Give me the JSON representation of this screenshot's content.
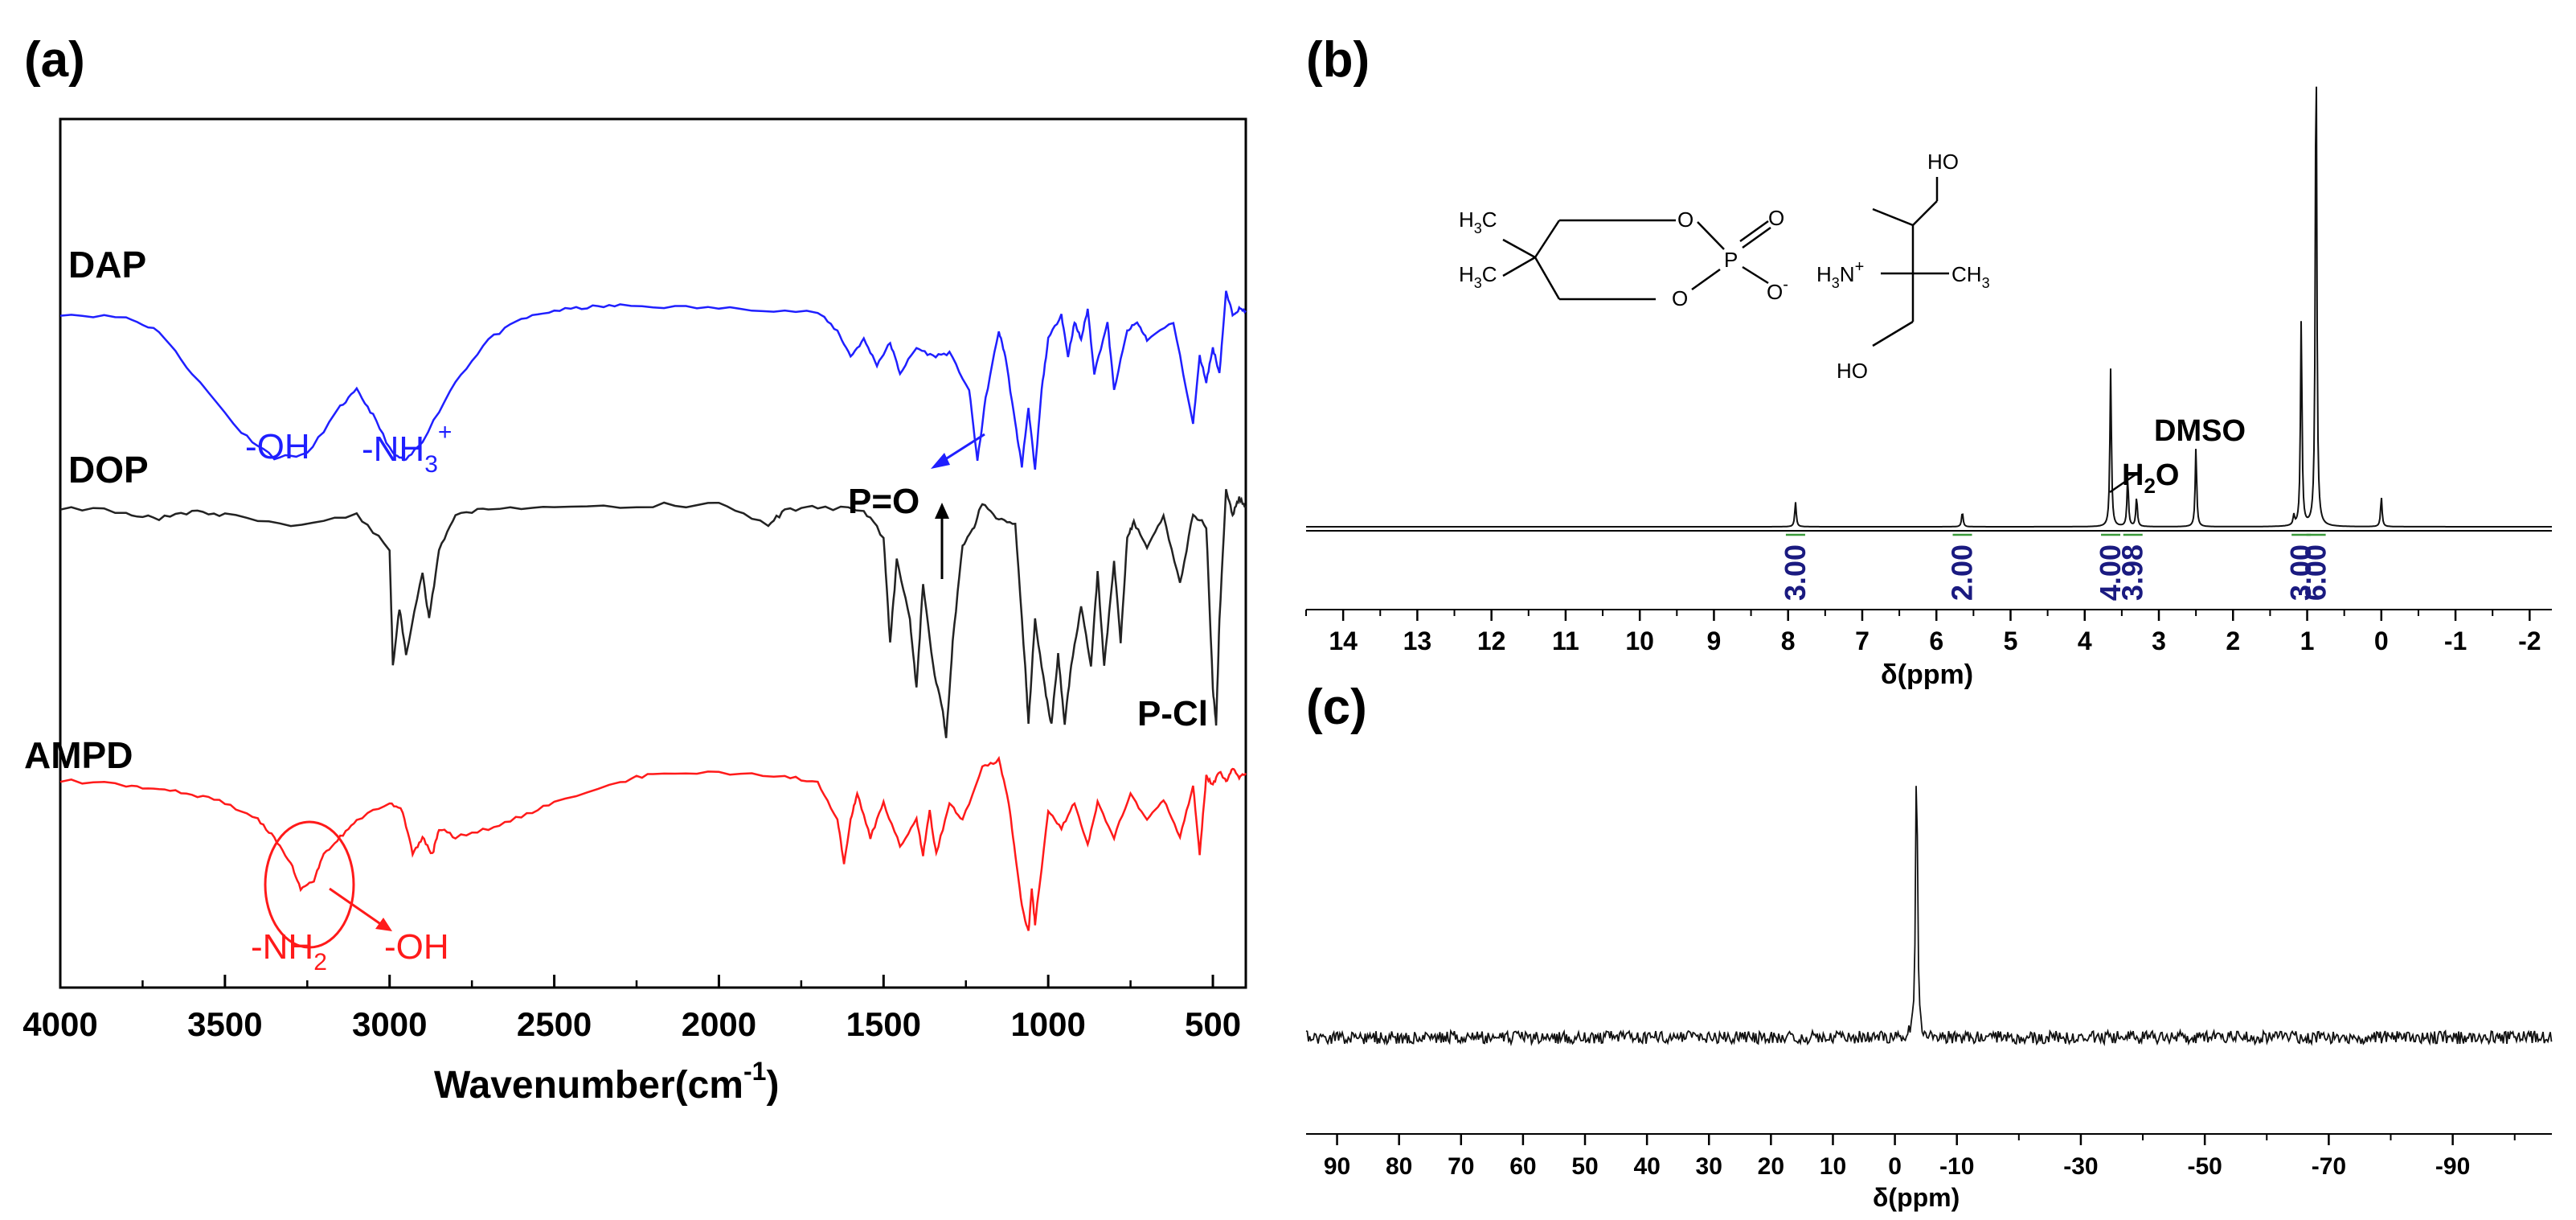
{
  "panels": [
    {
      "label": "(a)"
    },
    {
      "label": "(b)"
    },
    {
      "label": "(c)"
    }
  ],
  "colors": {
    "DAP": "#1f1fff",
    "DOP": "#222222",
    "AMPD": "#ff1a1a",
    "integral": "#1a1a80",
    "integral_bracket": "#3a9a3a"
  },
  "chart_data": [
    {
      "type": "line",
      "panel": "(a)",
      "xlabel_main": "Wavenumber(cm",
      "xlabel_sup": "-1",
      "xlabel_end": ")",
      "xlim": [
        4000,
        400
      ],
      "xticks": [
        "4000",
        "3500",
        "3000",
        "2500",
        "2000",
        "1500",
        "1000",
        "500"
      ],
      "xtick_values": [
        4000,
        3500,
        3000,
        2500,
        2000,
        1500,
        1000,
        500
      ],
      "series": [
        {
          "name": "DAP",
          "color": "#1f1fff",
          "offset": 0,
          "x": [
            4000,
            3800,
            3700,
            3600,
            3450,
            3350,
            3250,
            3150,
            3100,
            3050,
            2990,
            2950,
            2900,
            2800,
            2700,
            2600,
            2500,
            2400,
            2300,
            2100,
            1900,
            1700,
            1640,
            1600,
            1560,
            1520,
            1480,
            1450,
            1400,
            1350,
            1300,
            1240,
            1215,
            1190,
            1150,
            1130,
            1100,
            1080,
            1060,
            1040,
            1020,
            1000,
            960,
            940,
            920,
            900,
            880,
            860,
            820,
            800,
            760,
            730,
            700,
            620,
            560,
            540,
            520,
            500,
            480,
            460,
            440,
            420,
            400
          ],
          "y": [
            0.95,
            0.93,
            0.85,
            0.6,
            0.25,
            0.1,
            0.12,
            0.4,
            0.5,
            0.35,
            0.12,
            0.08,
            0.2,
            0.55,
            0.8,
            0.92,
            0.97,
            0.99,
            1.0,
            0.99,
            0.98,
            0.96,
            0.85,
            0.7,
            0.8,
            0.65,
            0.78,
            0.6,
            0.75,
            0.7,
            0.72,
            0.5,
            0.08,
            0.45,
            0.85,
            0.7,
            0.3,
            0.05,
            0.4,
            0.02,
            0.5,
            0.8,
            0.95,
            0.7,
            0.9,
            0.8,
            0.98,
            0.6,
            0.9,
            0.5,
            0.85,
            0.9,
            0.8,
            0.9,
            0.3,
            0.7,
            0.55,
            0.75,
            0.6,
            1.08,
            0.95,
            0.98,
            0.97
          ]
        },
        {
          "name": "DOP",
          "color": "#222222",
          "offset": 0,
          "x": [
            4000,
            3800,
            3700,
            3600,
            3500,
            3300,
            3100,
            3000,
            2990,
            2970,
            2950,
            2900,
            2880,
            2850,
            2800,
            2700,
            2500,
            2200,
            2000,
            1850,
            1800,
            1700,
            1560,
            1500,
            1480,
            1460,
            1420,
            1400,
            1380,
            1350,
            1320,
            1310,
            1290,
            1260,
            1230,
            1200,
            1150,
            1100,
            1070,
            1060,
            1040,
            1010,
            990,
            970,
            950,
            930,
            900,
            870,
            850,
            830,
            800,
            780,
            760,
            740,
            700,
            650,
            600,
            560,
            520,
            500,
            490,
            480,
            460,
            440,
            420,
            400
          ],
          "y": [
            0.98,
            0.96,
            0.93,
            0.96,
            0.95,
            0.9,
            0.95,
            0.8,
            0.3,
            0.55,
            0.35,
            0.7,
            0.5,
            0.8,
            0.95,
            0.97,
            0.98,
            0.99,
            0.99,
            0.9,
            0.97,
            0.98,
            0.97,
            0.85,
            0.4,
            0.75,
            0.5,
            0.2,
            0.65,
            0.3,
            0.1,
            0.0,
            0.4,
            0.82,
            0.88,
            1.0,
            0.93,
            0.9,
            0.3,
            0.05,
            0.5,
            0.2,
            0.05,
            0.35,
            0.05,
            0.3,
            0.55,
            0.3,
            0.7,
            0.3,
            0.75,
            0.4,
            0.85,
            0.92,
            0.8,
            0.95,
            0.65,
            0.95,
            0.9,
            0.2,
            0.05,
            0.5,
            1.05,
            0.95,
            1.02,
            0.98
          ]
        },
        {
          "name": "AMPD",
          "color": "#ff1a1a",
          "offset": 0,
          "x": [
            4000,
            3800,
            3700,
            3600,
            3500,
            3400,
            3350,
            3300,
            3270,
            3230,
            3200,
            3150,
            3100,
            3000,
            2960,
            2930,
            2900,
            2870,
            2850,
            2800,
            2700,
            2600,
            2500,
            2300,
            2200,
            2000,
            1800,
            1700,
            1640,
            1620,
            1600,
            1580,
            1540,
            1500,
            1450,
            1400,
            1380,
            1360,
            1340,
            1300,
            1260,
            1200,
            1150,
            1120,
            1100,
            1080,
            1060,
            1050,
            1040,
            1000,
            960,
            920,
            880,
            850,
            800,
            750,
            700,
            650,
            600,
            560,
            540,
            520,
            500,
            480,
            460,
            440,
            420,
            400
          ],
          "y": [
            0.93,
            0.9,
            0.88,
            0.85,
            0.8,
            0.7,
            0.6,
            0.45,
            0.3,
            0.35,
            0.5,
            0.6,
            0.7,
            0.8,
            0.75,
            0.5,
            0.6,
            0.5,
            0.65,
            0.6,
            0.65,
            0.72,
            0.8,
            0.92,
            0.97,
            0.97,
            0.95,
            0.92,
            0.7,
            0.45,
            0.7,
            0.85,
            0.6,
            0.8,
            0.55,
            0.7,
            0.5,
            0.75,
            0.5,
            0.8,
            0.7,
            1.0,
            1.05,
            0.8,
            0.5,
            0.2,
            0.05,
            0.3,
            0.1,
            0.75,
            0.65,
            0.8,
            0.55,
            0.8,
            0.6,
            0.85,
            0.7,
            0.82,
            0.6,
            0.9,
            0.5,
            0.95,
            0.9,
            0.98,
            0.92,
            1.0,
            0.95,
            0.97
          ]
        }
      ],
      "annotations": [
        {
          "text": "DAP",
          "bold": true
        },
        {
          "text": "DOP",
          "bold": true
        },
        {
          "text": "AMPD",
          "bold": true
        },
        {
          "text": "-OH",
          "color": "#1f1fff"
        },
        {
          "text": "-NH",
          "sub": "3",
          "sup": "+",
          "color": "#1f1fff"
        },
        {
          "text": "P=O"
        },
        {
          "text": "P-Cl"
        },
        {
          "text": "-NH",
          "sub": "2",
          "color": "#ff1a1a"
        },
        {
          "text": "-OH",
          "color": "#ff1a1a"
        }
      ]
    },
    {
      "type": "line",
      "panel": "(b)",
      "xlabel": "δ(ppm)",
      "xlim": [
        14.5,
        -2.3
      ],
      "xticks": [
        "14",
        "13",
        "12",
        "11",
        "10",
        "9",
        "8",
        "7",
        "6",
        "5",
        "4",
        "3",
        "2",
        "1",
        "0",
        "-1",
        "-2"
      ],
      "xtick_values": [
        14,
        13,
        12,
        11,
        10,
        9,
        8,
        7,
        6,
        5,
        4,
        3,
        2,
        1,
        0,
        -1,
        -2
      ],
      "peaks": [
        {
          "ppm": 7.9,
          "height": 0.05
        },
        {
          "ppm": 5.65,
          "height": 0.03
        },
        {
          "ppm": 3.65,
          "height": 0.32
        },
        {
          "ppm": 3.42,
          "height": 0.1
        },
        {
          "ppm": 3.3,
          "height": 0.06
        },
        {
          "ppm": 2.5,
          "height": 0.16
        },
        {
          "ppm": 1.18,
          "height": 0.02
        },
        {
          "ppm": 1.08,
          "height": 0.42
        },
        {
          "ppm": 0.88,
          "height": 1.0
        },
        {
          "ppm": 0.0,
          "height": 0.06
        }
      ],
      "integrals": [
        {
          "ppm": 7.9,
          "value": "3.00"
        },
        {
          "ppm": 5.65,
          "value": "2.00"
        },
        {
          "ppm": 3.65,
          "value": "4.00"
        },
        {
          "ppm": 3.35,
          "value": "3.98"
        },
        {
          "ppm": 1.08,
          "value": "3.00"
        },
        {
          "ppm": 0.88,
          "value": "6.00"
        }
      ],
      "annotations": [
        {
          "text": "DMSO",
          "bold": true
        },
        {
          "text": "H",
          "sub": "2",
          "end": "O",
          "bold": true
        }
      ],
      "structure_labels": {
        "h3c_top": "H",
        "h3c_top_sub": "3",
        "h3c_top_c": "C",
        "h3c_bottom": "H",
        "h3c_bottom_sub": "3",
        "h3c_bottom_c": "C",
        "o1": "O",
        "o2": "O",
        "o3": "O",
        "o_minus": "O",
        "minus": "-",
        "p": "P",
        "ho_top": "HO",
        "ho_bottom": "HO",
        "h3n": "H",
        "h3n_sub": "3",
        "h3n_n": "N",
        "h3n_plus": "+",
        "ch3": "CH",
        "ch3_sub": "3"
      }
    },
    {
      "type": "line",
      "panel": "(c)",
      "xlabel": "δ(ppm)",
      "xlim": [
        95,
        -106
      ],
      "xticks": [
        "90",
        "80",
        "70",
        "60",
        "50",
        "40",
        "30",
        "20",
        "10",
        "0",
        "-10",
        "-30",
        "-50",
        "-70",
        "-90"
      ],
      "xtick_values": [
        90,
        80,
        70,
        60,
        50,
        40,
        30,
        20,
        10,
        0,
        -10,
        -30,
        -50,
        -70,
        -90
      ],
      "minor_ticks": [
        -20,
        -40,
        -60,
        -80,
        -100
      ],
      "peaks": [
        {
          "ppm": -3.5,
          "height": 1.0
        }
      ]
    }
  ]
}
